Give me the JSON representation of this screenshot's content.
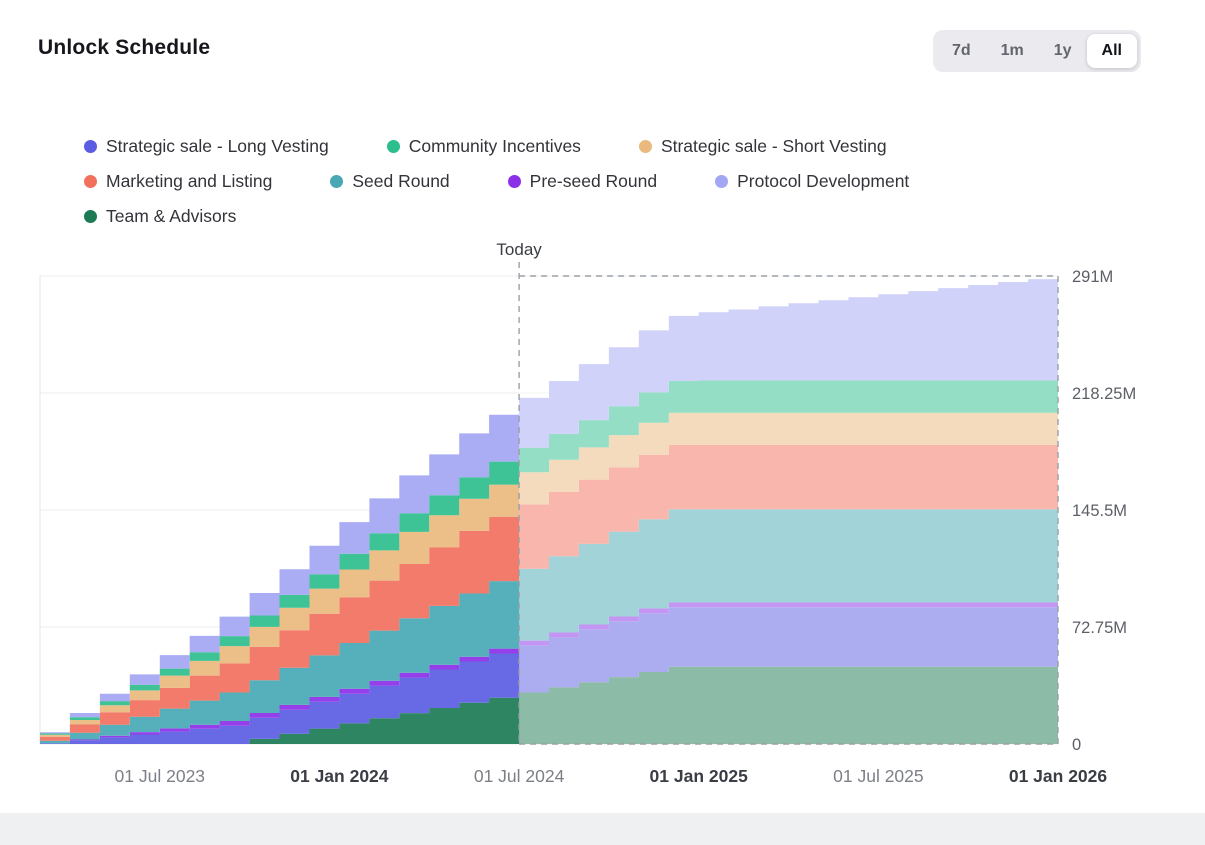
{
  "header": {
    "title": "Unlock Schedule",
    "ranges": [
      "7d",
      "1m",
      "1y",
      "All"
    ],
    "active_range": "All"
  },
  "legend": {
    "rows": [
      [
        {
          "label": "Strategic sale - Long Vesting",
          "color": "#5b5ce2"
        },
        {
          "label": "Community Incentives",
          "color": "#2cbe8c"
        },
        {
          "label": "Strategic sale - Short Vesting",
          "color": "#eab97e"
        }
      ],
      [
        {
          "label": "Marketing and Listing",
          "color": "#f2705e"
        },
        {
          "label": "Seed Round",
          "color": "#48a9b5"
        },
        {
          "label": "Pre-seed Round",
          "color": "#8c2fe8"
        },
        {
          "label": "Protocol Development",
          "color": "#a3a6f3"
        }
      ],
      [
        {
          "label": "Team & Advisors",
          "color": "#1c7b55"
        }
      ]
    ]
  },
  "chart_data": {
    "type": "area",
    "title": "Unlock Schedule",
    "stacked": true,
    "step": true,
    "x_unit": "month",
    "x_start": "Mar 2023",
    "x_end": "Jan 2026",
    "n_points": 35,
    "today_index": 16,
    "today_label": "Today",
    "ymax": 291,
    "grid": true,
    "y_axis_side": "right",
    "y_ticks": [
      {
        "value": 0,
        "label": "0"
      },
      {
        "value": 72.75,
        "label": "72.75M"
      },
      {
        "value": 145.5,
        "label": "145.5M"
      },
      {
        "value": 218.25,
        "label": "218.25M"
      },
      {
        "value": 291,
        "label": "291M"
      }
    ],
    "x_ticks": [
      {
        "label": "01 Jul 2023",
        "month": 4,
        "bold": false
      },
      {
        "label": "01 Jan 2024",
        "month": 10,
        "bold": true
      },
      {
        "label": "01 Jul 2024",
        "month": 16,
        "bold": false
      },
      {
        "label": "01 Jan 2025",
        "month": 22,
        "bold": true
      },
      {
        "label": "01 Jul 2025",
        "month": 28,
        "bold": false
      },
      {
        "label": "01 Jan 2026",
        "month": 34,
        "bold": true
      }
    ],
    "series": [
      {
        "name": "Team & Advisors",
        "color": "#1c7b55",
        "values": [
          0,
          0,
          0,
          0,
          0,
          0,
          0,
          3.2,
          6.4,
          9.6,
          12.8,
          16,
          19.2,
          22.4,
          25.6,
          28.8,
          32,
          35.2,
          38.4,
          41.6,
          44.8,
          48,
          48,
          48,
          48,
          48,
          48,
          48,
          48,
          48,
          48,
          48,
          48,
          48,
          48
        ]
      },
      {
        "name": "Strategic sale - Long Vesting",
        "color": "#5b5ce2",
        "values": [
          0.5,
          2.3,
          4.1,
          5.9,
          7.7,
          9.5,
          11.3,
          13.1,
          14.9,
          16.7,
          18.5,
          20.3,
          22.1,
          23.9,
          25.7,
          27.5,
          29.3,
          31.1,
          32.9,
          34.7,
          36.5,
          37,
          37,
          37,
          37,
          37,
          37,
          37,
          37,
          37,
          37,
          37,
          37,
          37,
          37
        ]
      },
      {
        "name": "Pre-seed Round",
        "color": "#8c2fe8",
        "values": [
          0,
          0.5,
          1,
          1.5,
          2,
          2.5,
          3,
          3,
          3,
          3,
          3,
          3,
          3,
          3,
          3,
          3,
          3,
          3,
          3,
          3,
          3,
          3,
          3,
          3,
          3,
          3,
          3,
          3,
          3,
          3,
          3,
          3,
          3,
          3,
          3
        ]
      },
      {
        "name": "Seed Round",
        "color": "#48a9b5",
        "values": [
          1.5,
          4.2,
          6.9,
          9.6,
          12.3,
          15,
          17.7,
          20.4,
          23.1,
          25.8,
          28.5,
          31.2,
          33.9,
          36.6,
          39.3,
          42,
          44.7,
          47.4,
          50.1,
          52.8,
          55.5,
          58,
          58,
          58,
          58,
          58,
          58,
          58,
          58,
          58,
          58,
          58,
          58,
          58,
          58
        ]
      },
      {
        "name": "Marketing and Listing",
        "color": "#f2705e",
        "values": [
          2.5,
          5.1,
          7.7,
          10.3,
          12.9,
          15.5,
          18.1,
          20.7,
          23.3,
          25.9,
          28.5,
          31.1,
          33.7,
          36.3,
          38.9,
          40,
          40,
          40,
          40,
          40,
          40,
          40,
          40,
          40,
          40,
          40,
          40,
          40,
          40,
          40,
          40,
          40,
          40,
          40,
          40
        ]
      },
      {
        "name": "Strategic sale - Short Vesting",
        "color": "#eab97e",
        "values": [
          1.2,
          2.8,
          4.4,
          6,
          7.6,
          9.2,
          10.8,
          12.4,
          14,
          15.6,
          17.2,
          18.8,
          20,
          20,
          20,
          20,
          20,
          20,
          20,
          20,
          20,
          20,
          20,
          20,
          20,
          20,
          20,
          20,
          20,
          20,
          20,
          20,
          20,
          20,
          20
        ]
      },
      {
        "name": "Community Incentives",
        "color": "#2cbe8c",
        "values": [
          0.8,
          1.7,
          2.6,
          3.5,
          4.4,
          5.3,
          6.2,
          7.1,
          8,
          8.9,
          9.8,
          10.7,
          11.6,
          12.5,
          13.4,
          14.3,
          15.2,
          16.1,
          17,
          17.9,
          18.8,
          19.7,
          20,
          20,
          20,
          20,
          20,
          20,
          20,
          20,
          20,
          20,
          20,
          20,
          20
        ]
      },
      {
        "name": "Protocol Development",
        "color": "#a3a6f3",
        "values": [
          0.8,
          2.7,
          4.6,
          6.5,
          8.4,
          10.2,
          12.1,
          14,
          15.9,
          17.8,
          19.7,
          21.6,
          23.5,
          25.4,
          27.2,
          29.1,
          31,
          32.9,
          34.8,
          36.7,
          38.6,
          40.5,
          42.4,
          44.2,
          46.1,
          48,
          49.9,
          51.8,
          53.7,
          55.6,
          57.5,
          59.4,
          61.3,
          63.1,
          65
        ]
      }
    ]
  }
}
